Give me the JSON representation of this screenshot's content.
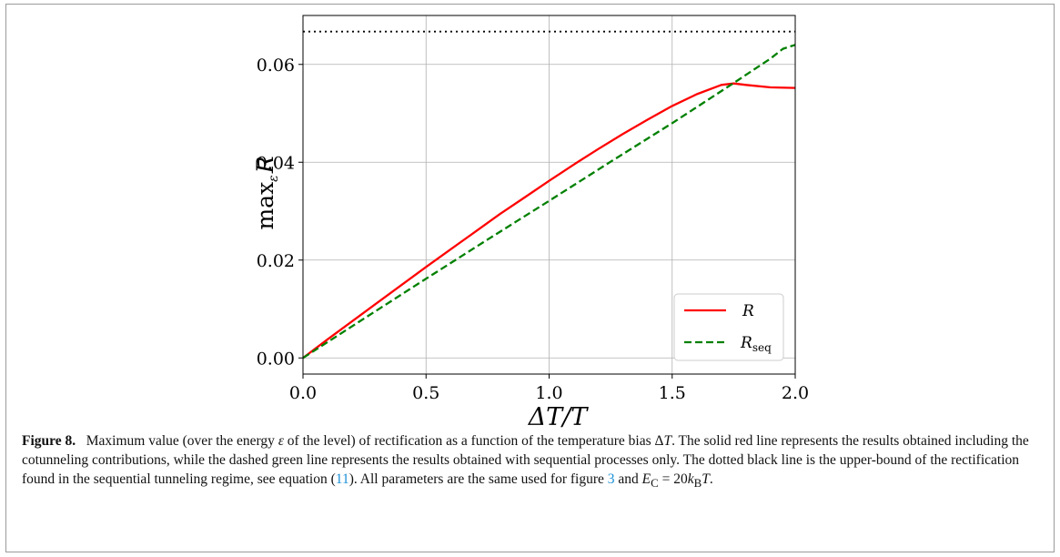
{
  "chart_data": {
    "type": "line",
    "xlabel": "ΔT/T",
    "ylabel": "max_ε R",
    "xlim": [
      0.0,
      2.0
    ],
    "ylim": [
      -0.0033,
      0.07
    ],
    "xticks": [
      "0.0",
      "0.5",
      "1.0",
      "1.5",
      "2.0"
    ],
    "yticks": [
      "0.00",
      "0.02",
      "0.04",
      "0.06"
    ],
    "grid": true,
    "legend_position": "lower-right",
    "series": [
      {
        "name": "R",
        "style": "solid",
        "color": "#ff0000",
        "x": [
          0.0,
          0.1,
          0.2,
          0.3,
          0.4,
          0.5,
          0.6,
          0.7,
          0.8,
          0.9,
          1.0,
          1.1,
          1.2,
          1.3,
          1.4,
          1.5,
          1.6,
          1.7,
          1.75,
          1.8,
          1.9,
          2.0
        ],
        "y": [
          0.0,
          0.0038,
          0.0075,
          0.0112,
          0.0149,
          0.0186,
          0.0222,
          0.0258,
          0.0294,
          0.0328,
          0.0362,
          0.0395,
          0.0427,
          0.0458,
          0.0487,
          0.0515,
          0.0539,
          0.0558,
          0.0561,
          0.0558,
          0.0553,
          0.0552
        ]
      },
      {
        "name": "R_seq",
        "style": "dashed",
        "color": "#008000",
        "x": [
          0.0,
          0.25,
          0.5,
          0.75,
          1.0,
          1.25,
          1.5,
          1.75,
          1.9,
          1.95,
          2.0
        ],
        "y": [
          0.0,
          0.0081,
          0.0162,
          0.0242,
          0.0321,
          0.0401,
          0.048,
          0.0562,
          0.0612,
          0.0632,
          0.064
        ]
      },
      {
        "name": "",
        "style": "dotted",
        "color": "#000000",
        "x": [
          0.0,
          2.0
        ],
        "y": [
          0.0667,
          0.0667
        ]
      }
    ]
  },
  "legend": {
    "r_label": "R",
    "rseq_main": "R",
    "rseq_sub": "seq"
  },
  "axis_labels": {
    "x": "ΔT/T",
    "y_main": "max",
    "y_sub": "ε",
    "y_var": "R"
  },
  "caption": {
    "label": "Figure 8.",
    "t1": "Maximum value (over the energy ",
    "eps": "ε",
    "t2": " of the level) of rectification as a function of the temperature bias Δ",
    "T": "T",
    "t3": ". The solid red line represents the results obtained including the cotunneling contributions, while the dashed green line represents the results obtained with sequential processes only. The dotted black line is the upper-bound of the rectification found in the sequential tunneling regime, see equation (",
    "eqref": "11",
    "t4": "). All parameters are the same used for figure ",
    "figref": "3",
    "t5": " and ",
    "EC_E": "E",
    "EC_sub": "C",
    "t6": " = 20",
    "kB_k": "k",
    "kB_sub": "B",
    "T2": "T",
    "t7": "."
  }
}
